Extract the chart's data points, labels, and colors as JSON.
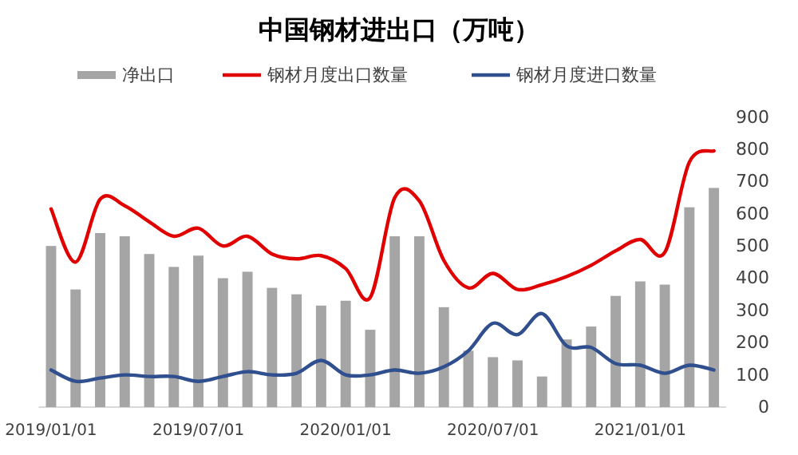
{
  "chart_data": {
    "type": "bar",
    "title": "中国钢材进出口（万吨）",
    "categories": [
      "2019/01/01",
      null,
      null,
      null,
      null,
      null,
      "2019/07/01",
      null,
      null,
      null,
      null,
      null,
      "2020/01/01",
      null,
      null,
      null,
      null,
      null,
      "2020/07/01",
      null,
      null,
      null,
      null,
      null,
      "2021/01/01",
      null,
      null,
      null
    ],
    "series": [
      {
        "name": "净出口",
        "color": "#a5a5a5",
        "values": [
          500,
          365,
          540,
          530,
          475,
          435,
          470,
          400,
          420,
          370,
          350,
          315,
          330,
          240,
          530,
          530,
          310,
          175,
          155,
          145,
          95,
          210,
          250,
          345,
          390,
          380,
          620,
          680
        ]
      },
      {
        "name": "钢材月度出口数量",
        "type": "line",
        "color": "#e00000",
        "values": [
          615,
          450,
          645,
          625,
          575,
          530,
          555,
          500,
          530,
          475,
          460,
          470,
          430,
          340,
          650,
          640,
          455,
          370,
          415,
          365,
          380,
          405,
          440,
          485,
          520,
          480,
          760,
          795
        ]
      },
      {
        "name": "钢材月度进口数量",
        "type": "line",
        "color": "#2f4f8f",
        "values": [
          115,
          80,
          90,
          100,
          95,
          95,
          80,
          95,
          110,
          100,
          105,
          145,
          100,
          100,
          115,
          105,
          125,
          175,
          260,
          225,
          290,
          190,
          185,
          135,
          130,
          105,
          130,
          115
        ]
      }
    ],
    "ylim": [
      0,
      900
    ],
    "yticks": [
      0,
      100,
      200,
      300,
      400,
      500,
      600,
      700,
      800,
      900
    ],
    "legend": "top",
    "grid": false
  }
}
